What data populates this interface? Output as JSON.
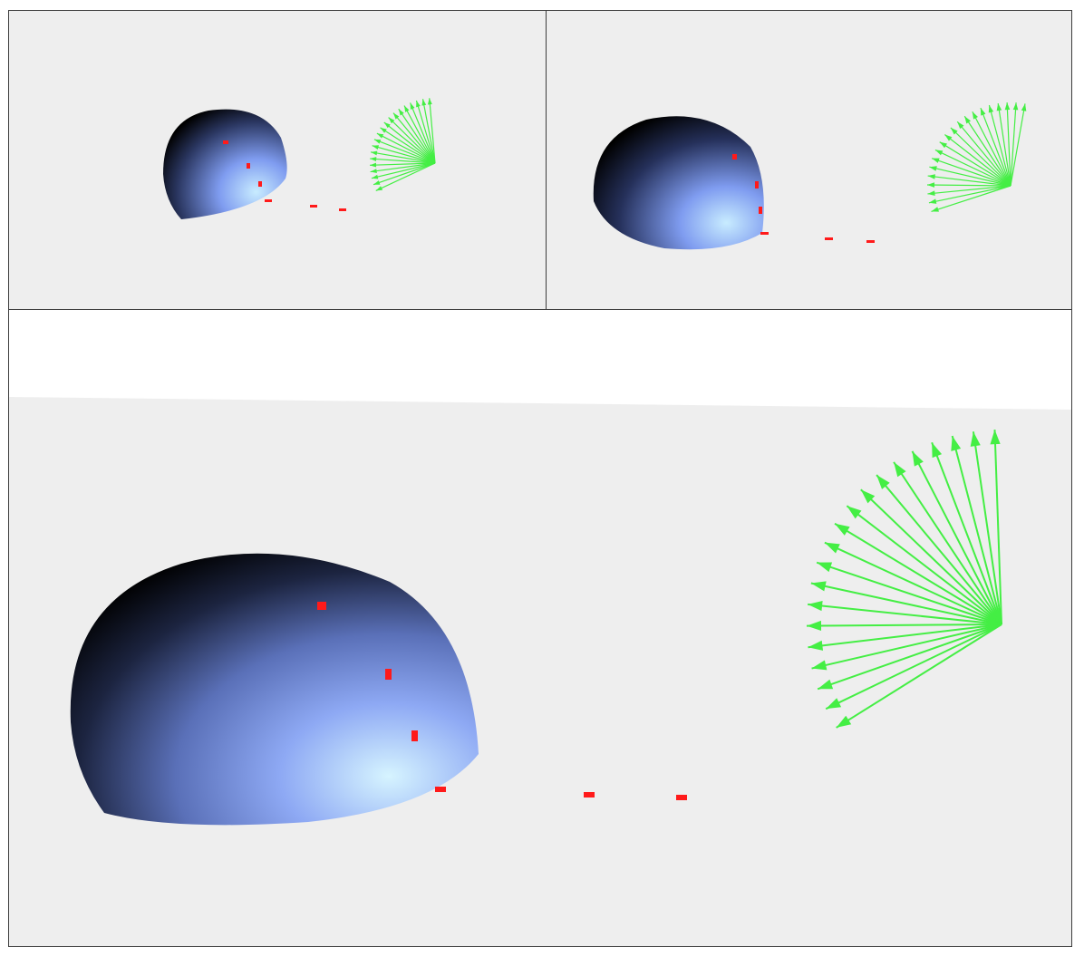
{
  "scene": {
    "viewports": [
      {
        "name": "top-left-view"
      },
      {
        "name": "top-right-view"
      },
      {
        "name": "main-view"
      }
    ],
    "colors": {
      "ground": "#eeeeee",
      "sky": "#ffffff",
      "sphere_light": "#c8ecff",
      "sphere_mid": "#7f9cf0",
      "sphere_dark": "#000000",
      "markers": "#ff1a1a",
      "vectors": "#44ee44",
      "border": "#3c3c3c"
    },
    "objects": {
      "sphere_icon": "hemisphere-shape",
      "marker_icon": "red-point-marker",
      "vector_icon": "green-arrow-vector"
    },
    "vector_fan_count": 20,
    "marker_count": 6
  }
}
